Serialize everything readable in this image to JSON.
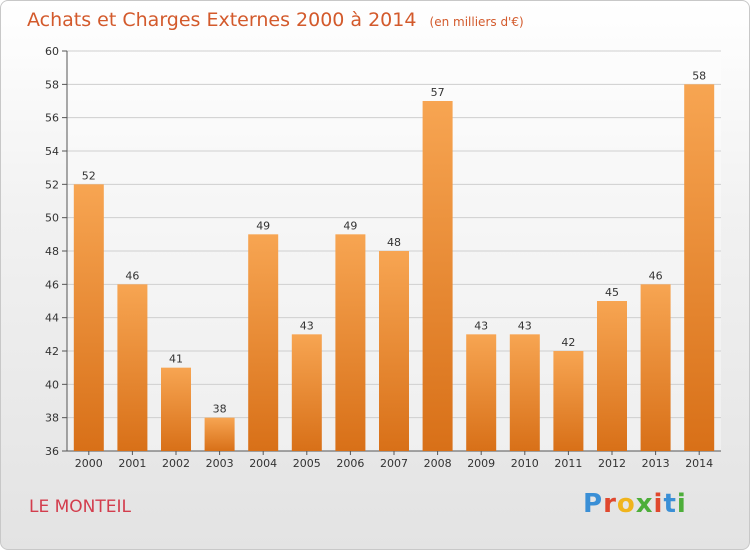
{
  "header": {
    "title": "Achats et Charges Externes 2000 à 2014",
    "unit": "(en milliers d'€)"
  },
  "footer": {
    "commune": "LE MONTEIL",
    "brand_letters": [
      "P",
      "r",
      "o",
      "x",
      "i",
      "t",
      "i"
    ],
    "brand_colors": [
      "#3a8fd6",
      "#e0482e",
      "#f0b41c",
      "#4dae3a",
      "#e0482e",
      "#3a8fd6",
      "#4dae3a"
    ]
  },
  "colors": {
    "bar_light": "#f7a552",
    "bar_dark": "#d87018",
    "grid": "#cfcfcf",
    "axis": "#555555"
  },
  "chart_data": {
    "type": "bar",
    "title": "Achats et Charges Externes 2000 à 2014",
    "subtitle": "(en milliers d'€)",
    "categories": [
      "2000",
      "2001",
      "2002",
      "2003",
      "2004",
      "2005",
      "2006",
      "2007",
      "2008",
      "2009",
      "2010",
      "2011",
      "2012",
      "2013",
      "2014"
    ],
    "values": [
      52,
      46,
      41,
      38,
      49,
      43,
      49,
      48,
      57,
      43,
      43,
      42,
      45,
      46,
      58
    ],
    "ylim": [
      36,
      60
    ],
    "yticks": [
      36,
      38,
      40,
      42,
      44,
      46,
      48,
      50,
      52,
      54,
      56,
      58,
      60
    ],
    "grid": true,
    "legend": "none"
  }
}
